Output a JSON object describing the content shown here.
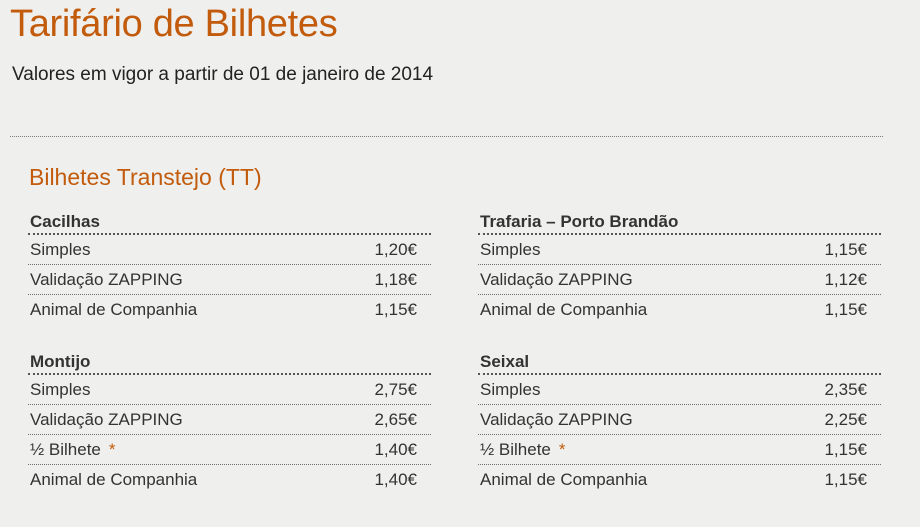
{
  "page": {
    "title": "Tarifário de Bilhetes",
    "subtitle": "Valores em vigor a partir de 01 de janeiro de 2014"
  },
  "section": {
    "title": "Bilhetes Transtejo (TT)"
  },
  "tables": {
    "cacilhas": {
      "name": "Cacilhas",
      "rows": [
        {
          "label": "Simples",
          "price": "1,20€"
        },
        {
          "label": "Validação ZAPPING",
          "price": "1,18€"
        },
        {
          "label": "Animal de Companhia",
          "price": "1,15€"
        }
      ]
    },
    "trafaria": {
      "name": "Trafaria – Porto Brandão",
      "rows": [
        {
          "label": "Simples",
          "price": "1,15€"
        },
        {
          "label": "Validação ZAPPING",
          "price": "1,12€"
        },
        {
          "label": "Animal de Companhia",
          "price": "1,15€"
        }
      ]
    },
    "montijo": {
      "name": "Montijo",
      "rows": [
        {
          "label": "Simples",
          "price": "2,75€"
        },
        {
          "label": "Validação ZAPPING",
          "price": "2,65€"
        },
        {
          "label": "½ Bilhete",
          "mark": "*",
          "price": "1,40€"
        },
        {
          "label": "Animal de Companhia",
          "price": "1,40€"
        }
      ]
    },
    "seixal": {
      "name": "Seixal",
      "rows": [
        {
          "label": "Simples",
          "price": "2,35€"
        },
        {
          "label": "Validação ZAPPING",
          "price": "2,25€"
        },
        {
          "label": "½ Bilhete",
          "mark": "*",
          "price": "1,15€"
        },
        {
          "label": "Animal de Companhia",
          "price": "1,15€"
        }
      ]
    }
  }
}
